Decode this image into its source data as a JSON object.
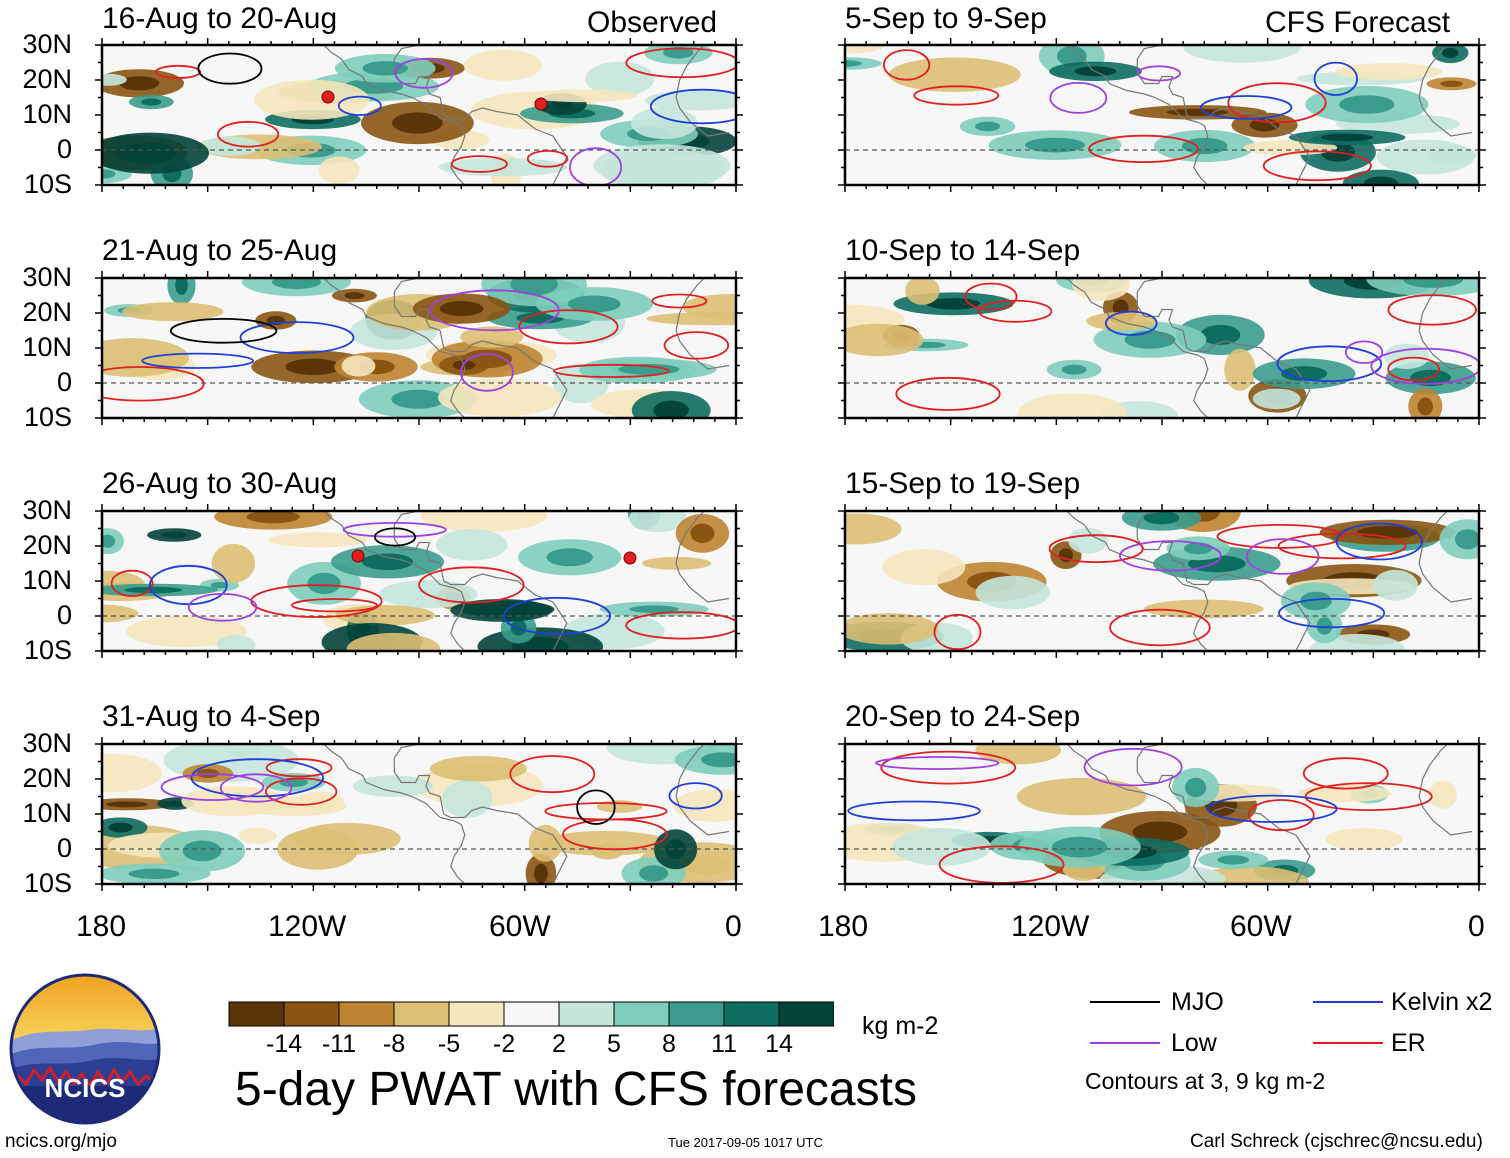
{
  "title": "5-day PWAT with CFS forecasts",
  "units": "kg m-2",
  "observed_label": "Observed",
  "forecast_label": "CFS Forecast",
  "panels_observed": [
    {
      "label": "16-Aug to 20-Aug"
    },
    {
      "label": "21-Aug to 25-Aug"
    },
    {
      "label": "26-Aug to 30-Aug"
    },
    {
      "label": "31-Aug to 4-Sep"
    }
  ],
  "panels_forecast": [
    {
      "label": "5-Sep to 9-Sep"
    },
    {
      "label": "10-Sep to 14-Sep"
    },
    {
      "label": "15-Sep to 19-Sep"
    },
    {
      "label": "20-Sep to 24-Sep"
    }
  ],
  "lat_labels": [
    "30N",
    "20N",
    "10N",
    "0",
    "10S"
  ],
  "lon_labels": [
    "180",
    "120W",
    "60W",
    "0"
  ],
  "colorbar": {
    "ticks": [
      "-14",
      "-11",
      "-8",
      "-5",
      "-2",
      "2",
      "5",
      "8",
      "11",
      "14"
    ],
    "colors": [
      "#5a3508",
      "#8a5512",
      "#bd8432",
      "#dcbf73",
      "#f4e6bd",
      "#f7f7f7",
      "#c4e6dc",
      "#7ecdbb",
      "#3a9c8c",
      "#0d6d5f",
      "#02433a"
    ]
  },
  "legend": {
    "mjo": {
      "label": "MJO",
      "color": "#000000"
    },
    "kelvin": {
      "label": "Kelvin x2",
      "color": "#1f3fd6"
    },
    "low": {
      "label": "Low",
      "color": "#a040e0"
    },
    "er": {
      "label": "ER",
      "color": "#e02020"
    },
    "note": "Contours at 3, 9 kg m-2"
  },
  "logo_text": "NCICS",
  "footer": {
    "url": "ncics.org/mjo",
    "timestamp": "Tue 2017-09-05 1017 UTC",
    "author": "Carl Schreck (cjschrec@ncsu.edu)"
  }
}
